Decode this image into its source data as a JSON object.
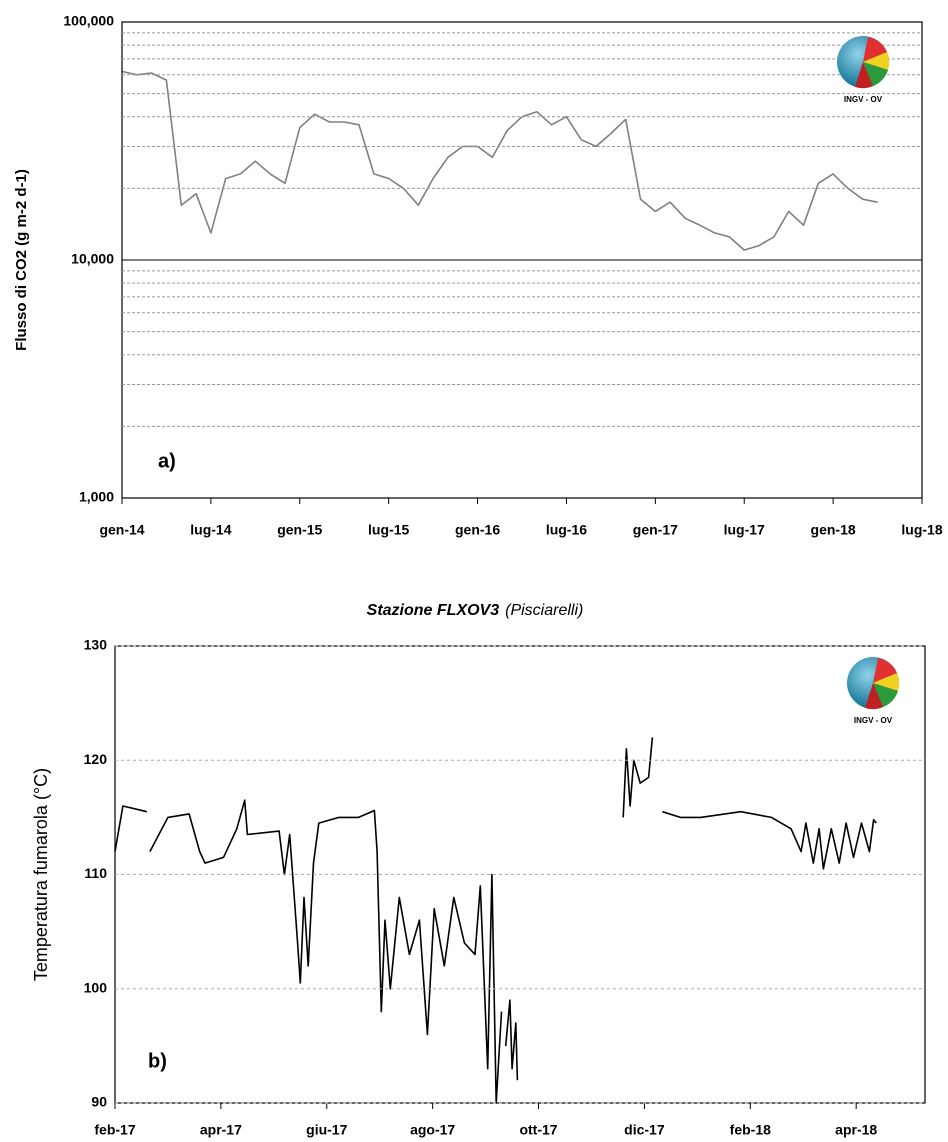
{
  "chart_data": [
    {
      "type": "line",
      "title": "Stazione FLXOV3",
      "subtitle": "(Pisciarelli)",
      "panel_label": "a)",
      "ylabel": "Flusso di CO2 (g m-2 d-1)",
      "logo_text": "INGV - OV",
      "log_y": true,
      "grid": "solid",
      "title_style": "normal",
      "ylim": [
        1000,
        100000
      ],
      "yticks": [
        {
          "value": 1000,
          "label": "1,000"
        },
        {
          "value": 10000,
          "label": "10,000"
        },
        {
          "value": 100000,
          "label": "100,000"
        }
      ],
      "minor_yticks": [
        2000,
        3000,
        4000,
        5000,
        6000,
        7000,
        8000,
        9000,
        20000,
        30000,
        40000,
        50000,
        60000,
        70000,
        80000,
        90000
      ],
      "xlim": [
        0,
        54
      ],
      "xticks": [
        {
          "value": 0,
          "label": "gen-14"
        },
        {
          "value": 6,
          "label": "lug-14"
        },
        {
          "value": 12,
          "label": "gen-15"
        },
        {
          "value": 18,
          "label": "lug-15"
        },
        {
          "value": 24,
          "label": "gen-16"
        },
        {
          "value": 30,
          "label": "lug-16"
        },
        {
          "value": 36,
          "label": "gen-17"
        },
        {
          "value": 42,
          "label": "lug-17"
        },
        {
          "value": 48,
          "label": "gen-18"
        },
        {
          "value": 54,
          "label": "lug-18"
        }
      ],
      "series": [
        {
          "color": "#808080",
          "x": [
            0,
            1,
            2,
            3,
            4,
            5,
            6,
            7,
            8,
            9,
            10,
            11,
            12,
            13,
            14,
            15,
            16,
            17,
            18,
            19,
            20,
            21,
            22,
            23,
            24,
            25,
            26,
            27,
            28,
            29,
            30,
            31,
            32,
            33,
            34,
            35,
            36,
            37,
            38,
            39,
            40,
            41,
            42,
            43,
            44,
            45,
            46,
            47,
            48,
            49,
            50,
            51
          ],
          "values": [
            62000,
            60000,
            61000,
            57000,
            17000,
            19000,
            13000,
            22000,
            23000,
            26000,
            23000,
            21000,
            36000,
            41000,
            38000,
            38000,
            37000,
            23000,
            22000,
            20000,
            17000,
            22000,
            27000,
            30000,
            30000,
            27000,
            35000,
            40000,
            42000,
            37000,
            40000,
            32000,
            30000,
            34000,
            39000,
            18000,
            16000,
            17500,
            15000,
            14000,
            13000,
            12500,
            11000,
            11500,
            12500,
            16000,
            14000,
            21000,
            23000,
            20000,
            18000,
            17500
          ]
        }
      ]
    },
    {
      "type": "line",
      "title": "Stazione FLXOV3",
      "subtitle": "(Pisciarelli)",
      "panel_label": "b)",
      "ylabel": "Temperatura fumarola  (°C)",
      "logo_text": "INGV - OV",
      "log_y": false,
      "grid": "dashed",
      "title_style": "italic",
      "ylim": [
        90,
        130
      ],
      "yticks": [
        90,
        100,
        110,
        120,
        130
      ],
      "xlim": [
        0,
        15.3
      ],
      "xticks": [
        {
          "value": 0,
          "label": "feb-17"
        },
        {
          "value": 2,
          "label": "apr-17"
        },
        {
          "value": 4,
          "label": "giu-17"
        },
        {
          "value": 6,
          "label": "ago-17"
        },
        {
          "value": 8,
          "label": "ott-17"
        },
        {
          "value": 10,
          "label": "dic-17"
        },
        {
          "value": 12,
          "label": "feb-18"
        },
        {
          "value": 14,
          "label": "apr-18"
        }
      ],
      "series": [
        {
          "color": "#000000",
          "x": [
            0,
            0.15,
            0.6,
            0.63,
            0.66,
            1.0,
            1.4,
            1.6,
            1.7,
            2.05,
            2.3,
            2.45,
            2.5,
            3.1,
            3.2,
            3.3,
            3.45,
            3.5,
            3.57,
            3.65,
            3.75,
            3.85,
            4.23,
            4.6,
            4.9,
            4.95,
            5.03,
            5.1,
            5.2,
            5.37,
            5.56,
            5.75,
            5.9,
            6.03,
            6.22,
            6.4,
            6.6,
            6.8,
            6.9,
            7.04,
            7.12,
            7.2,
            7.3,
            7.34,
            7.38,
            7.46,
            7.5,
            7.57,
            7.6,
            9.0,
            9.6,
            9.66,
            9.73,
            9.8,
            9.92,
            10.08,
            10.15,
            10.25,
            10.34,
            10.68,
            11.06,
            11.82,
            12.4,
            12.77,
            12.96,
            13.05,
            13.19,
            13.3,
            13.38,
            13.53,
            13.68,
            13.81,
            13.95,
            14.1,
            14.25,
            14.33,
            14.38
          ],
          "values": [
            112,
            116,
            115.5,
            null,
            112,
            115,
            115.3,
            112,
            111,
            111.5,
            114,
            116.5,
            113.5,
            113.8,
            110,
            113.5,
            104,
            100.5,
            108,
            102,
            111,
            114.5,
            115,
            115,
            115.6,
            112,
            98,
            106,
            100,
            108,
            103,
            106,
            96,
            107,
            102,
            108,
            104,
            103,
            109,
            93,
            110,
            90,
            98,
            null,
            95,
            99,
            93,
            97,
            92,
            null,
            115,
            121,
            116,
            120,
            118,
            118.5,
            122,
            null,
            115.5,
            115,
            115,
            115.5,
            115,
            114,
            112,
            114.5,
            111,
            114,
            110.5,
            114,
            111,
            114.5,
            111.5,
            114.5,
            112,
            114.8,
            114.5
          ]
        }
      ]
    }
  ]
}
